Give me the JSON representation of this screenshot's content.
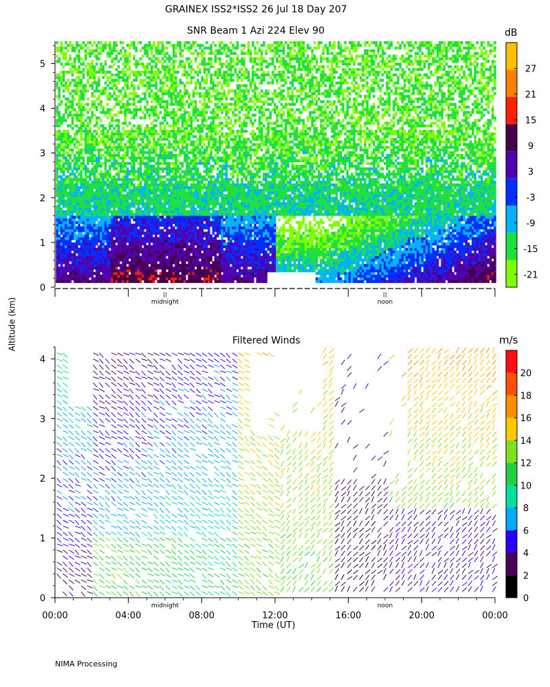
{
  "header": {
    "line1": "GRAINEX ISS2*ISS2  26 Jul 18 Day 207"
  },
  "footer": {
    "processing": "NIMA Processing"
  },
  "shared": {
    "ylabel": "Altitude (km)",
    "xlabel": "Time (UT)"
  },
  "chart_data": [
    {
      "type": "heatmap",
      "title": "SNR Beam 1 Azi 224 Elev 90",
      "ylabel": "Altitude (km)",
      "ylim": [
        0,
        5.5
      ],
      "yticks": [
        "0",
        "1",
        "2",
        "3",
        "4",
        "5"
      ],
      "xlim": [
        0,
        24
      ],
      "x_markers": [
        {
          "label": "midnight",
          "x": 6
        },
        {
          "label": "noon",
          "x": 18
        }
      ],
      "colorbar": {
        "unit": "dB",
        "range": [
          -24,
          33
        ],
        "ticks": [
          "-21",
          "-15",
          "-9",
          "-3",
          "3",
          "9",
          "15",
          "21",
          "27"
        ],
        "colors": [
          "#80ff00",
          "#20e040",
          "#00b4ff",
          "#0030ff",
          "#5000b0",
          "#46004a",
          "#ff2000",
          "#ff8000",
          "#ffc000"
        ]
      },
      "grid": false
    },
    {
      "type": "scatter",
      "title": "Filtered Winds",
      "ylabel": "Altitude (km)",
      "xlabel": "Time (UT)",
      "ylim": [
        0,
        4.2
      ],
      "yticks": [
        "0",
        "1",
        "2",
        "3",
        "4"
      ],
      "xlim": [
        0,
        24
      ],
      "xticks": [
        "00:00",
        "04:00",
        "08:00",
        "12:00",
        "16:00",
        "20:00",
        "00:00"
      ],
      "x_markers": [
        {
          "label": "midnight",
          "x": 6
        },
        {
          "label": "noon",
          "x": 18
        }
      ],
      "colorbar": {
        "unit": "m/s",
        "range": [
          0,
          22
        ],
        "ticks": [
          "0",
          "2",
          "4",
          "6",
          "8",
          "10",
          "12",
          "14",
          "16",
          "18",
          "20"
        ],
        "colors": [
          "#000000",
          "#4a005a",
          "#2a00ff",
          "#00a8ff",
          "#00e0a0",
          "#20d040",
          "#80e020",
          "#ffc800",
          "#ff9000",
          "#ff5000",
          "#ff1010"
        ]
      },
      "grid": false
    }
  ]
}
